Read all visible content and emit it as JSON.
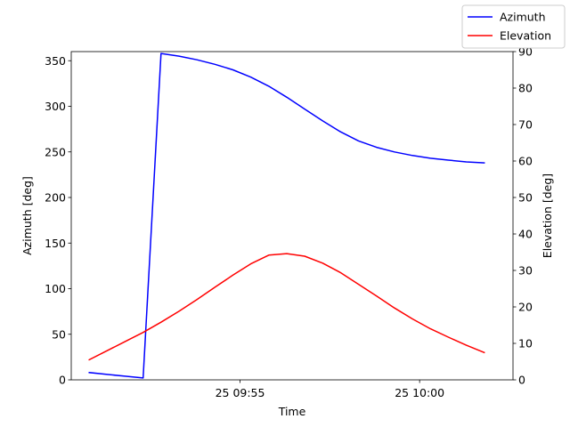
{
  "chart_data": {
    "type": "line",
    "xlabel": "Time",
    "ylabel_left": "Azimuth [deg]",
    "ylabel_right": "Elevation [deg]",
    "x_ticks": [
      "25 09:55",
      "25 10:00"
    ],
    "x_tick_minutes": [
      0,
      5
    ],
    "xlim_minutes": [
      -4.7,
      7.6
    ],
    "ylim_left": [
      0,
      360
    ],
    "ylim_right": [
      0,
      90
    ],
    "y_ticks_left": [
      0,
      50,
      100,
      150,
      200,
      250,
      300,
      350
    ],
    "y_ticks_right": [
      0,
      10,
      20,
      30,
      40,
      50,
      60,
      70,
      80,
      90
    ],
    "grid": false,
    "legend_position": "top-right",
    "series": [
      {
        "name": "Azimuth",
        "axis": "left",
        "color": "#0000ff",
        "x_minutes": [
          -4.2,
          -3.7,
          -3.2,
          -2.7,
          -2.2,
          -1.7,
          -1.2,
          -0.7,
          -0.2,
          0.3,
          0.8,
          1.3,
          1.8,
          2.3,
          2.8,
          3.3,
          3.8,
          4.3,
          4.8,
          5.3,
          5.8,
          6.3,
          6.8
        ],
        "values": [
          8,
          6,
          4,
          2,
          358,
          355,
          351,
          346,
          340,
          332,
          322,
          310,
          297,
          284,
          272,
          262,
          255,
          250,
          246,
          243,
          241,
          239,
          238
        ]
      },
      {
        "name": "Elevation",
        "axis": "right",
        "color": "#ff0000",
        "x_minutes": [
          -4.2,
          -3.7,
          -3.2,
          -2.7,
          -2.2,
          -1.7,
          -1.2,
          -0.7,
          -0.2,
          0.3,
          0.8,
          1.3,
          1.8,
          2.3,
          2.8,
          3.3,
          3.8,
          4.3,
          4.8,
          5.3,
          5.8,
          6.3,
          6.8
        ],
        "values": [
          5.5,
          8,
          10.5,
          13,
          15.8,
          18.8,
          22,
          25.4,
          28.7,
          31.8,
          34.2,
          34.6,
          33.9,
          32,
          29.4,
          26.2,
          23,
          19.7,
          16.7,
          14,
          11.7,
          9.5,
          7.5
        ]
      }
    ]
  }
}
